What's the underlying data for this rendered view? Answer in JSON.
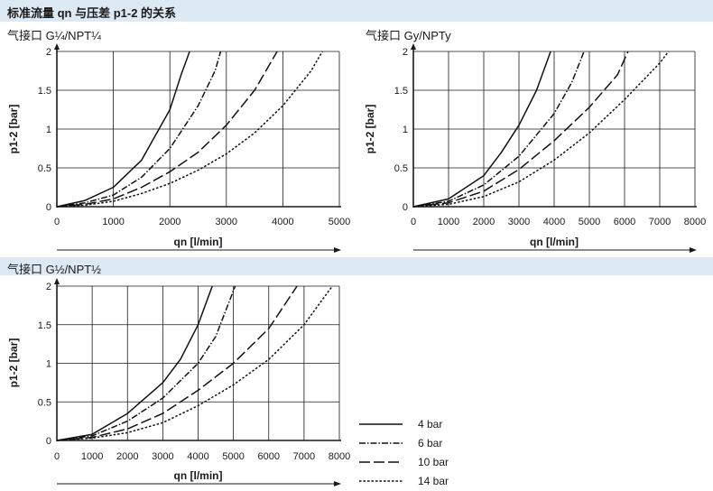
{
  "page": {
    "title": "标准流量 qn 与压差 p1-2 的关系",
    "legend": [
      {
        "label": "4 bar",
        "style": "solid"
      },
      {
        "label": "6 bar",
        "style": "dashdot"
      },
      {
        "label": "10 bar",
        "style": "longdash"
      },
      {
        "label": "14 bar",
        "style": "dotted"
      }
    ]
  },
  "chart_data": [
    {
      "type": "line",
      "title": "气接口 G¼/NPT¼",
      "xlabel": "qn [l/min]",
      "ylabel": "p1-2 [bar]",
      "xlim": [
        0,
        5000
      ],
      "ylim": [
        0,
        2
      ],
      "xticks": [
        "0",
        "1000",
        "2000",
        "3000",
        "4000",
        "5000"
      ],
      "yticks": [
        "0",
        "0.5",
        "1",
        "1.5",
        "2"
      ],
      "grid": true,
      "series": [
        {
          "name": "4 bar",
          "style": "solid",
          "x": [
            0,
            500,
            1000,
            1500,
            2000,
            2200,
            2350
          ],
          "y": [
            0,
            0.08,
            0.25,
            0.6,
            1.25,
            1.7,
            2.0
          ]
        },
        {
          "name": "6 bar",
          "style": "dashdot",
          "x": [
            0,
            500,
            1000,
            1500,
            2000,
            2500,
            2800,
            2900
          ],
          "y": [
            0,
            0.05,
            0.15,
            0.38,
            0.75,
            1.3,
            1.75,
            2.0
          ]
        },
        {
          "name": "10 bar",
          "style": "longdash",
          "x": [
            0,
            500,
            1000,
            1500,
            2000,
            2500,
            3000,
            3500,
            3900
          ],
          "y": [
            0,
            0.03,
            0.1,
            0.25,
            0.45,
            0.7,
            1.05,
            1.5,
            2.0
          ]
        },
        {
          "name": "14 bar",
          "style": "dotted",
          "x": [
            0,
            500,
            1000,
            1500,
            2000,
            2500,
            3000,
            3500,
            4000,
            4500,
            4700
          ],
          "y": [
            0,
            0.02,
            0.07,
            0.17,
            0.3,
            0.47,
            0.68,
            0.95,
            1.3,
            1.75,
            2.0
          ]
        }
      ]
    },
    {
      "type": "line",
      "title": "气接口 Gy/NPTy",
      "xlabel": "qn [l/min]",
      "ylabel": "p1-2 [bar]",
      "xlim": [
        0,
        8000
      ],
      "ylim": [
        0,
        2
      ],
      "xticks": [
        "0",
        "1000",
        "2000",
        "3000",
        "4000",
        "5000",
        "6000",
        "7000",
        "8000"
      ],
      "yticks": [
        "0",
        "0.5",
        "1",
        "1.5",
        "2"
      ],
      "grid": true,
      "series": [
        {
          "name": "4 bar",
          "style": "solid",
          "x": [
            0,
            1000,
            2000,
            2500,
            3000,
            3500,
            3900
          ],
          "y": [
            0,
            0.1,
            0.4,
            0.7,
            1.05,
            1.5,
            2.0
          ]
        },
        {
          "name": "6 bar",
          "style": "dashdot",
          "x": [
            0,
            1000,
            2000,
            3000,
            4000,
            4500,
            4850
          ],
          "y": [
            0,
            0.07,
            0.28,
            0.65,
            1.2,
            1.6,
            2.0
          ]
        },
        {
          "name": "10 bar",
          "style": "longdash",
          "x": [
            0,
            1000,
            2000,
            3000,
            4000,
            5000,
            5800,
            6100
          ],
          "y": [
            0,
            0.05,
            0.2,
            0.48,
            0.85,
            1.28,
            1.7,
            2.0
          ]
        },
        {
          "name": "14 bar",
          "style": "dotted",
          "x": [
            0,
            1000,
            2000,
            3000,
            4000,
            5000,
            6000,
            7000,
            7250
          ],
          "y": [
            0,
            0.03,
            0.13,
            0.32,
            0.6,
            0.95,
            1.38,
            1.85,
            2.0
          ]
        }
      ]
    },
    {
      "type": "line",
      "title": "气接口 G½/NPT½",
      "xlabel": "qn [l/min]",
      "ylabel": "p1-2 [bar]",
      "xlim": [
        0,
        8000
      ],
      "ylim": [
        0,
        2
      ],
      "xticks": [
        "0",
        "1000",
        "2000",
        "3000",
        "4000",
        "5000",
        "6000",
        "7000",
        "8000"
      ],
      "yticks": [
        "0",
        "0.5",
        "1",
        "1.5",
        "2"
      ],
      "grid": true,
      "series": [
        {
          "name": "4 bar",
          "style": "solid",
          "x": [
            0,
            1000,
            2000,
            3000,
            3500,
            4000,
            4400
          ],
          "y": [
            0,
            0.08,
            0.35,
            0.75,
            1.05,
            1.5,
            2.0
          ]
        },
        {
          "name": "6 bar",
          "style": "dashdot",
          "x": [
            0,
            1000,
            2000,
            3000,
            4000,
            4500,
            5050
          ],
          "y": [
            0,
            0.06,
            0.25,
            0.55,
            1.0,
            1.35,
            2.0
          ]
        },
        {
          "name": "10 bar",
          "style": "longdash",
          "x": [
            0,
            1000,
            2000,
            3000,
            4000,
            5000,
            6000,
            6800
          ],
          "y": [
            0,
            0.04,
            0.15,
            0.35,
            0.65,
            1.0,
            1.45,
            2.0
          ]
        },
        {
          "name": "14 bar",
          "style": "dotted",
          "x": [
            0,
            1000,
            2000,
            3000,
            4000,
            5000,
            6000,
            7000,
            7800
          ],
          "y": [
            0,
            0.03,
            0.1,
            0.23,
            0.45,
            0.72,
            1.05,
            1.5,
            2.0
          ]
        }
      ]
    }
  ]
}
